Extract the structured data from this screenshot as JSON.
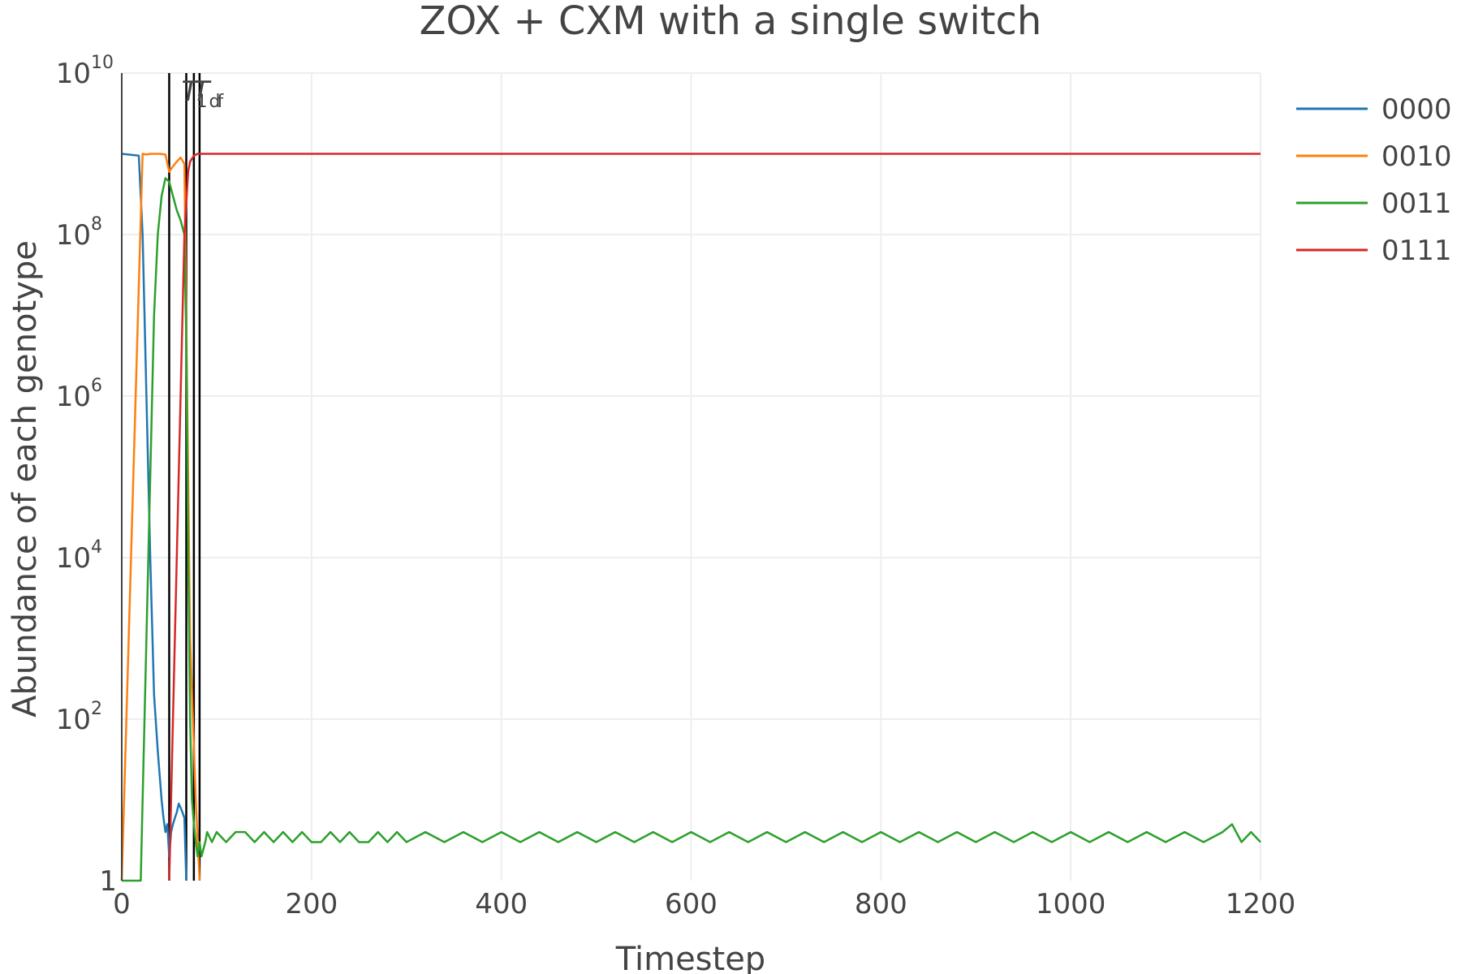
{
  "chart_data": {
    "type": "line",
    "title": "ZOX + CXM with a single switch",
    "xlabel": "Timestep",
    "ylabel": "Abundance of each genotype",
    "xlim": [
      0,
      1200
    ],
    "ylim": [
      1,
      10000000000
    ],
    "y_scale": "log",
    "grid": true,
    "legend_position": "top-right",
    "x_ticks": [
      {
        "value": 0,
        "label": "0"
      },
      {
        "value": 200,
        "label": "200"
      },
      {
        "value": 400,
        "label": "400"
      },
      {
        "value": 600,
        "label": "600"
      },
      {
        "value": 800,
        "label": "800"
      },
      {
        "value": 1000,
        "label": "1000"
      },
      {
        "value": 1200,
        "label": "1200"
      }
    ],
    "y_ticks": [
      {
        "value": 1,
        "base": "1",
        "exp": ""
      },
      {
        "value": 100,
        "base": "10",
        "exp": "2"
      },
      {
        "value": 10000,
        "base": "10",
        "exp": "4"
      },
      {
        "value": 1000000,
        "base": "10",
        "exp": "6"
      },
      {
        "value": 100000000,
        "base": "10",
        "exp": "8"
      },
      {
        "value": 10000000000,
        "base": "10",
        "exp": "10"
      }
    ],
    "vlines": [
      {
        "x": 50,
        "label": ""
      },
      {
        "x": 68,
        "label": "T",
        "sub": "1"
      },
      {
        "x": 76,
        "label": "T",
        "sub": "d"
      },
      {
        "x": 82,
        "label": "",
        "sub": "f"
      }
    ],
    "series": [
      {
        "name": "0000",
        "color": "#1f77b4",
        "x": [
          0,
          18,
          22,
          26,
          30,
          34,
          38,
          42,
          44,
          46,
          48,
          50,
          52,
          54,
          56,
          58,
          60,
          62,
          64,
          66,
          68
        ],
        "y": [
          1000000000,
          950000000,
          100000000,
          1000000,
          10000,
          200,
          40,
          10,
          6,
          4,
          5,
          2,
          4,
          5,
          6,
          7,
          9,
          8,
          7,
          6,
          1
        ]
      },
      {
        "name": "0010",
        "color": "#ff7f0e",
        "x": [
          0,
          22,
          26,
          30,
          40,
          46,
          50,
          54,
          58,
          62,
          66,
          70,
          72,
          75,
          78,
          82
        ],
        "y": [
          1,
          1000000000,
          980000000,
          1000000000,
          1000000000,
          980000000,
          600000000,
          700000000,
          800000000,
          900000000,
          750000000,
          100000,
          1000,
          100,
          10,
          1
        ]
      },
      {
        "name": "0011",
        "color": "#2ca02c",
        "x": [
          0,
          20,
          22,
          26,
          30,
          34,
          38,
          42,
          46,
          50,
          54,
          58,
          62,
          66,
          68,
          70,
          72,
          74,
          76,
          78,
          80,
          82,
          84,
          88,
          90,
          95,
          100,
          110,
          120,
          130,
          140,
          150,
          160,
          170,
          180,
          190,
          200,
          210,
          220,
          230,
          240,
          250,
          260,
          270,
          280,
          290,
          300,
          320,
          340,
          360,
          380,
          400,
          420,
          440,
          460,
          480,
          500,
          520,
          540,
          560,
          580,
          600,
          620,
          640,
          660,
          680,
          700,
          720,
          740,
          760,
          780,
          800,
          820,
          840,
          860,
          880,
          900,
          920,
          940,
          960,
          980,
          1000,
          1020,
          1040,
          1060,
          1080,
          1100,
          1120,
          1140,
          1160,
          1170,
          1180,
          1190,
          1200
        ],
        "y": [
          1,
          1,
          10,
          1000,
          100000,
          10000000,
          100000000,
          300000000,
          500000000,
          450000000,
          300000000,
          200000000,
          150000000,
          100000000,
          5000000,
          10000,
          100,
          10,
          5,
          3,
          2,
          3,
          2,
          3,
          4,
          3,
          4,
          3,
          4,
          4,
          3,
          4,
          3,
          4,
          3,
          4,
          3,
          3,
          4,
          3,
          4,
          3,
          3,
          4,
          3,
          4,
          3,
          4,
          3,
          4,
          3,
          4,
          3,
          4,
          3,
          4,
          3,
          4,
          3,
          4,
          3,
          4,
          3,
          4,
          3,
          4,
          3,
          4,
          3,
          4,
          3,
          4,
          3,
          4,
          3,
          4,
          3,
          4,
          3,
          4,
          3,
          4,
          3,
          4,
          3,
          4,
          3,
          4,
          3,
          4,
          5,
          3,
          4,
          3
        ]
      },
      {
        "name": "0111",
        "color": "#d62728",
        "x": [
          50,
          54,
          58,
          62,
          66,
          70,
          72,
          76,
          80,
          90,
          100,
          200,
          400,
          600,
          800,
          1000,
          1200
        ],
        "y": [
          1,
          100,
          10000,
          1000000,
          100000000,
          600000000,
          800000000,
          950000000,
          1000000000,
          1000000000,
          1000000000,
          1000000000,
          1000000000,
          1000000000,
          1000000000,
          1000000000,
          1000000000
        ]
      }
    ]
  }
}
